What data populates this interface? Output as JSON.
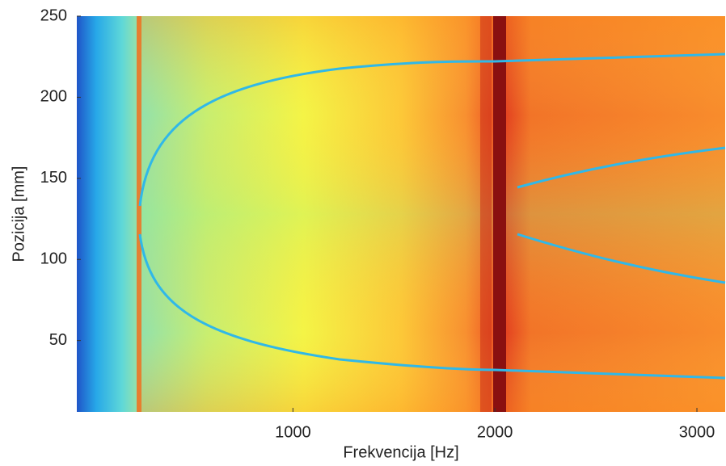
{
  "chart_data": {
    "type": "heatmap",
    "xlabel": "Frekvencija [Hz]",
    "ylabel": "Pozicija [mm]",
    "xlim": [
      -70,
      3140
    ],
    "xticks": [
      1000,
      2000,
      3000
    ],
    "ylim": [
      6,
      250
    ],
    "yticks": [
      50,
      100,
      150,
      200,
      250
    ]
  }
}
